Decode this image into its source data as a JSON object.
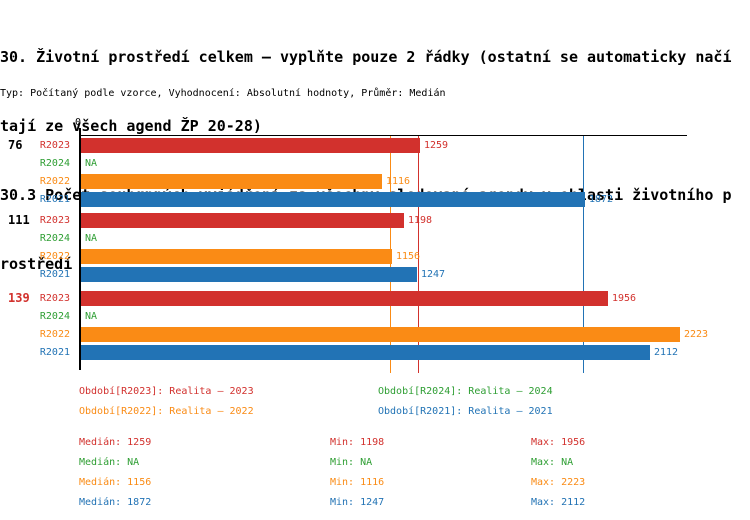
{
  "header": {
    "title_lines": [
      "30. Životní prostředí celkem – vyplňte pouze 2 řádky (ostatní se automaticky načí",
      "tají ze všech agend ŽP 20-28)",
      "30.3 Počet souhrnných vyjádření za všechny sledované agendy v oblasti životního p",
      "rostředí"
    ],
    "meta_line": "Typ: Počítaný podle vzorce, Vyhodnocení: Absolutní hodnoty, Průměr: Medián"
  },
  "colors": {
    "red": "#d2312d",
    "green": "#2e9e33",
    "orange": "#fa8b15",
    "blue": "#2273b5",
    "black": "#000000"
  },
  "chart_data": {
    "type": "bar",
    "orientation": "horizontal",
    "title": "30.3 Počet souhrnných vyjádření za všechny sledované agendy v oblasti životního prostředí",
    "xlim": [
      0,
      2252
    ],
    "axis": {
      "zero_label": "0"
    },
    "categories": [
      "76",
      "111",
      "139"
    ],
    "series": [
      {
        "name": "R2023",
        "color": "red",
        "values": [
          1259,
          1198,
          1956
        ]
      },
      {
        "name": "R2024",
        "color": "green",
        "values": [
          null,
          null,
          null
        ]
      },
      {
        "name": "R2022",
        "color": "orange",
        "values": [
          1116,
          1156,
          2223
        ]
      },
      {
        "name": "R2021",
        "color": "blue",
        "values": [
          1872,
          1247,
          2112
        ]
      }
    ],
    "na_label": "NA",
    "groups": [
      {
        "label": "76",
        "label_color": "black",
        "bars": [
          {
            "series": "R2023",
            "color": "red",
            "value": 1259,
            "value_label": "1259"
          },
          {
            "series": "R2024",
            "color": "green",
            "value": null,
            "value_label": "NA"
          },
          {
            "series": "R2022",
            "color": "orange",
            "value": 1116,
            "value_label": "1116"
          },
          {
            "series": "R2021",
            "color": "blue",
            "value": 1872,
            "value_label": "1872"
          }
        ]
      },
      {
        "label": "111",
        "label_color": "black",
        "bars": [
          {
            "series": "R2023",
            "color": "red",
            "value": 1198,
            "value_label": "1198"
          },
          {
            "series": "R2024",
            "color": "green",
            "value": null,
            "value_label": "NA"
          },
          {
            "series": "R2022",
            "color": "orange",
            "value": 1156,
            "value_label": "1156"
          },
          {
            "series": "R2021",
            "color": "blue",
            "value": 1247,
            "value_label": "1247"
          }
        ]
      },
      {
        "label": "139",
        "label_color": "red",
        "bars": [
          {
            "series": "R2023",
            "color": "red",
            "value": 1956,
            "value_label": "1956"
          },
          {
            "series": "R2024",
            "color": "green",
            "value": null,
            "value_label": "NA"
          },
          {
            "series": "R2022",
            "color": "orange",
            "value": 2223,
            "value_label": "2223"
          },
          {
            "series": "R2021",
            "color": "blue",
            "value": 2112,
            "value_label": "2112"
          }
        ]
      }
    ],
    "median_lines": [
      {
        "series": "R2023",
        "color": "red",
        "value": 1259
      },
      {
        "series": "R2022",
        "color": "orange",
        "value": 1156
      },
      {
        "series": "R2021",
        "color": "blue",
        "value": 1872
      }
    ]
  },
  "legend": {
    "items": [
      {
        "color": "red",
        "text": "Období[R2023]: Realita – 2023"
      },
      {
        "color": "orange",
        "text": "Období[R2022]: Realita – 2022"
      },
      {
        "color": "green",
        "text": "Období[R2024]: Realita – 2024"
      },
      {
        "color": "blue",
        "text": "Období[R2021]: Realita – 2021"
      }
    ]
  },
  "stats": {
    "rows": [
      {
        "color": "red",
        "cells": [
          "Medián: 1259",
          "Min: 1198",
          "Max: 1956"
        ]
      },
      {
        "color": "green",
        "cells": [
          "Medián: NA",
          "Min: NA",
          "Max: NA"
        ]
      },
      {
        "color": "orange",
        "cells": [
          "Medián: 1156",
          "Min: 1116",
          "Max: 2223"
        ]
      },
      {
        "color": "blue",
        "cells": [
          "Medián: 1872",
          "Min: 1247",
          "Max: 2112"
        ]
      }
    ]
  }
}
